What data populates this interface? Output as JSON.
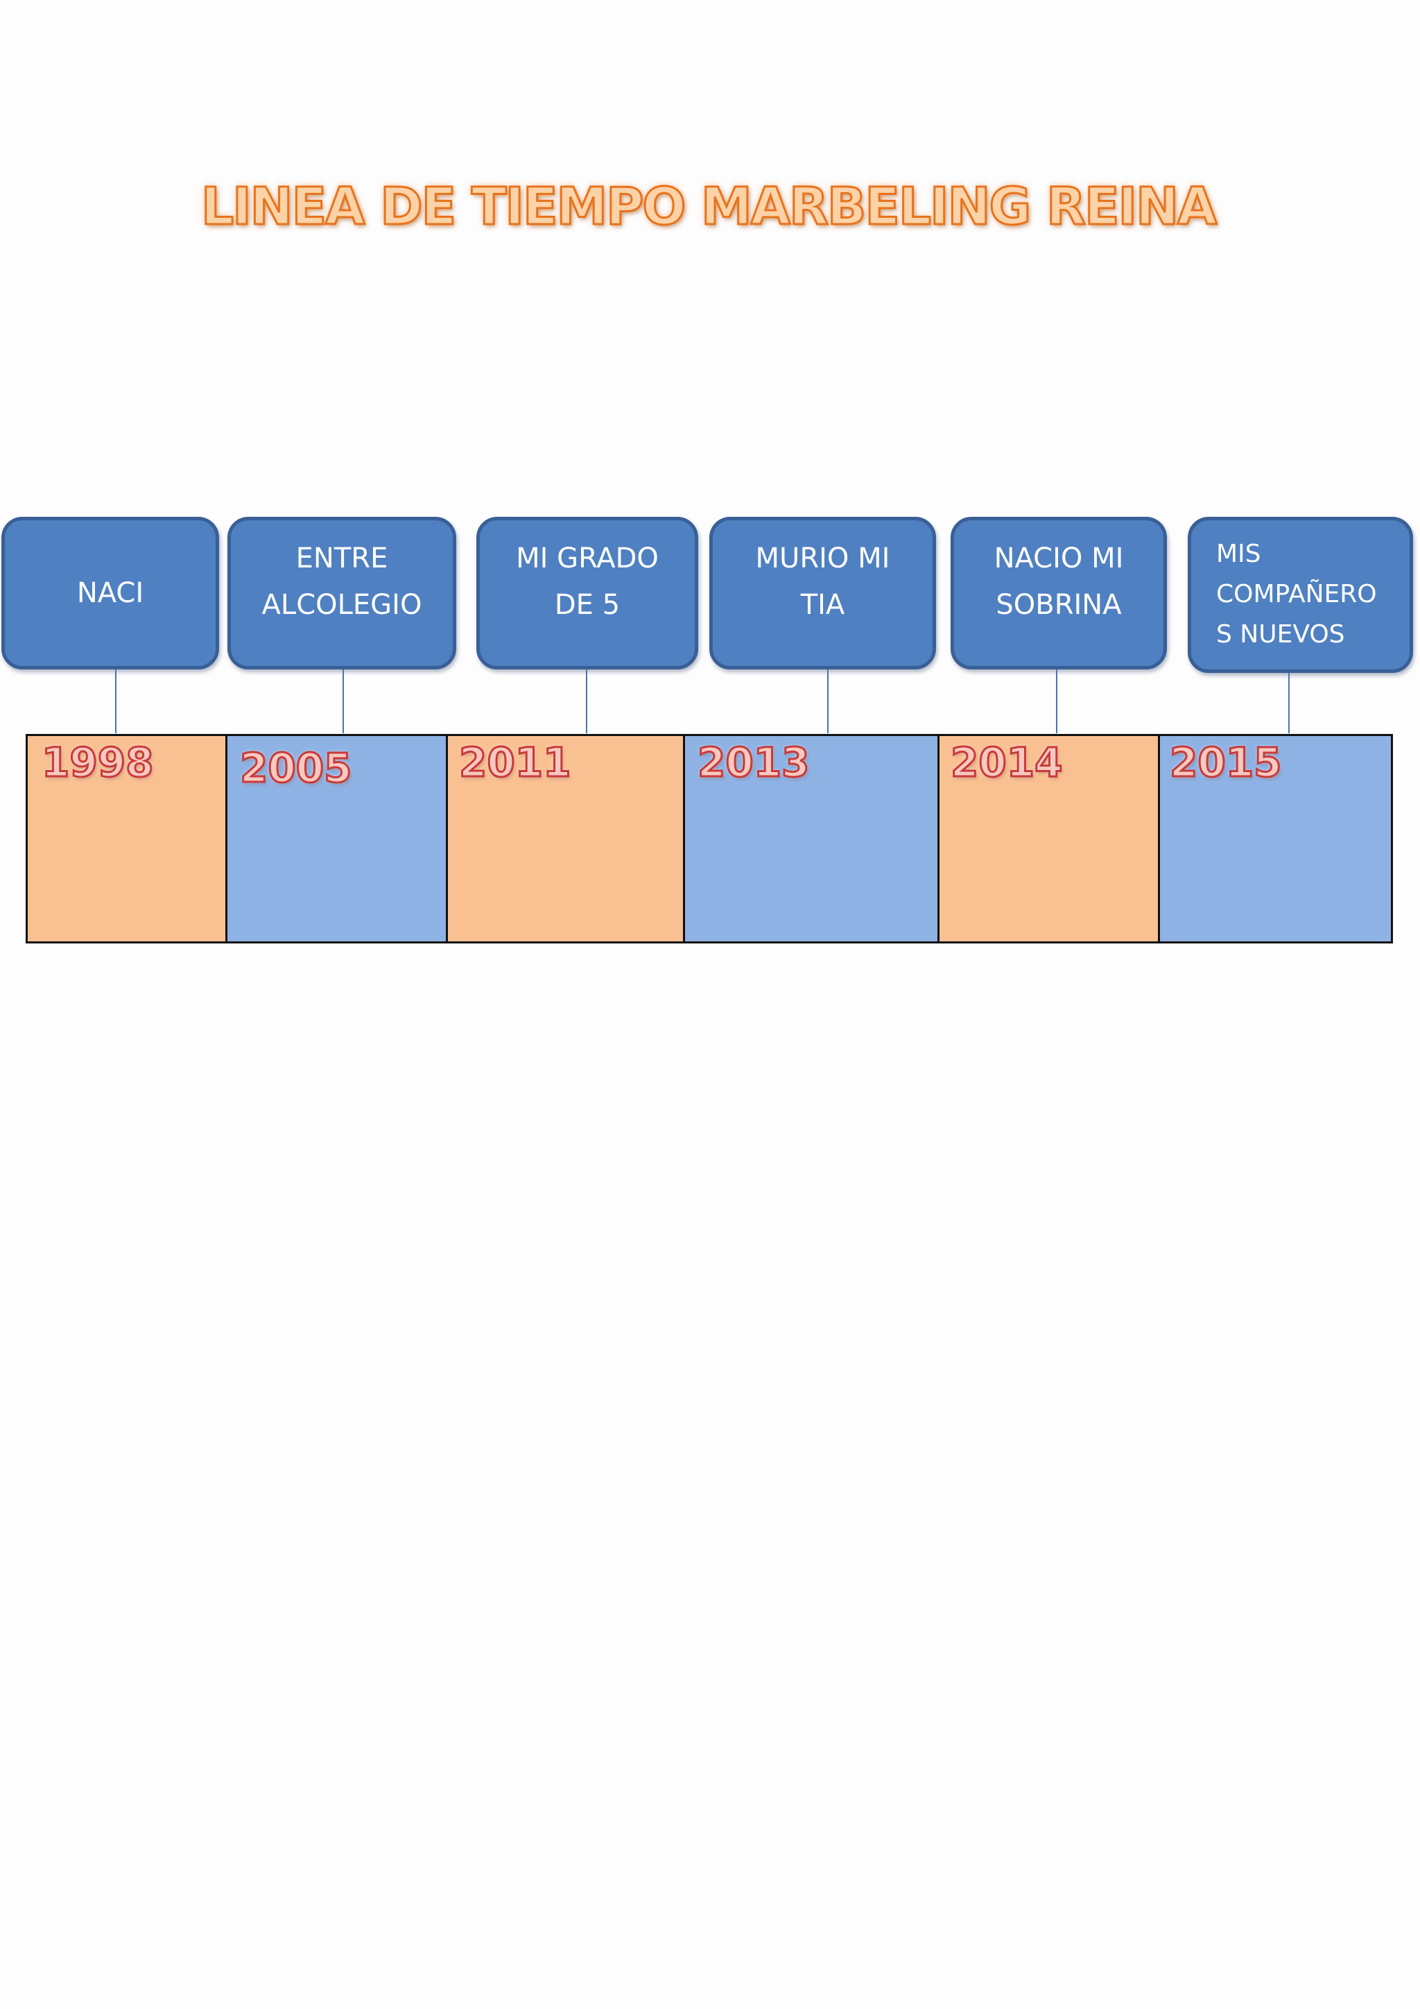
{
  "title": "LINEA DE TIEMPO  MARBELING REINA",
  "colors": {
    "box_fill": "#4f80c1",
    "box_border": "#395f97",
    "cell_orange": "#f9c092",
    "cell_blue": "#8eb2e3",
    "title_outline": "#e8731c",
    "year_outline": "#c93a3a"
  },
  "events": [
    {
      "label": "NACI"
    },
    {
      "label": "ENTRE\nALCOLEGIO"
    },
    {
      "label": "MI GRADO\nDE 5"
    },
    {
      "label": "MURIO MI\nTIA"
    },
    {
      "label": "NACIO MI\nSOBRINA"
    },
    {
      "label": "MIS\nCOMPAÑERO\nS NUEVOS"
    }
  ],
  "years": [
    {
      "year": "1998",
      "color": "#f9c092"
    },
    {
      "year": "2005",
      "color": "#8eb2e3"
    },
    {
      "year": "2011",
      "color": "#f9c092"
    },
    {
      "year": "2013",
      "color": "#8eb2e3"
    },
    {
      "year": "2014",
      "color": "#f9c092"
    },
    {
      "year": "2015",
      "color": "#8eb2e3"
    }
  ]
}
